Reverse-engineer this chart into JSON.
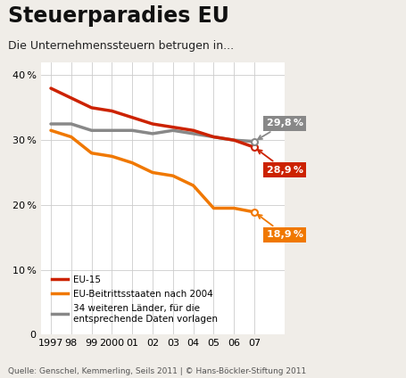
{
  "title": "Steuerparadies EU",
  "subtitle": "Die Unternehmenssteuern betrugen in...",
  "source": "Quelle: Genschel, Kemmerling, Seils 2011 | © Hans-Böckler-Stiftung 2011",
  "years": [
    1997,
    1998,
    1999,
    2000,
    2001,
    2002,
    2003,
    2004,
    2005,
    2006,
    2007
  ],
  "eu15": [
    38.0,
    36.5,
    35.0,
    34.5,
    33.5,
    32.5,
    32.0,
    31.5,
    30.5,
    30.0,
    28.9
  ],
  "beitritt": [
    31.5,
    30.5,
    28.0,
    27.5,
    26.5,
    25.0,
    24.5,
    23.0,
    19.5,
    19.5,
    18.9
  ],
  "laender": [
    32.5,
    32.5,
    31.5,
    31.5,
    31.5,
    31.0,
    31.5,
    31.0,
    30.5,
    30.0,
    29.8
  ],
  "eu15_color": "#cc2200",
  "beitritt_color": "#f07800",
  "laender_color": "#888888",
  "label_eu15": "EU-15",
  "label_beitritt": "EU-Beitrittsstaaten nach 2004",
  "label_laender": "34 weiteren Länder, für die\nentsprechende Daten vorlagen",
  "end_label_eu15": "28,9 %",
  "end_label_beitritt": "18,9 %",
  "end_label_laender": "29,8 %",
  "ylim": [
    0,
    42
  ],
  "yticks": [
    0,
    10,
    20,
    30,
    40
  ],
  "ytick_labels": [
    "0",
    "10 %",
    "20 %",
    "30 %",
    "40 %"
  ],
  "bg_color": "#f0ede8",
  "plot_bg": "#ffffff"
}
